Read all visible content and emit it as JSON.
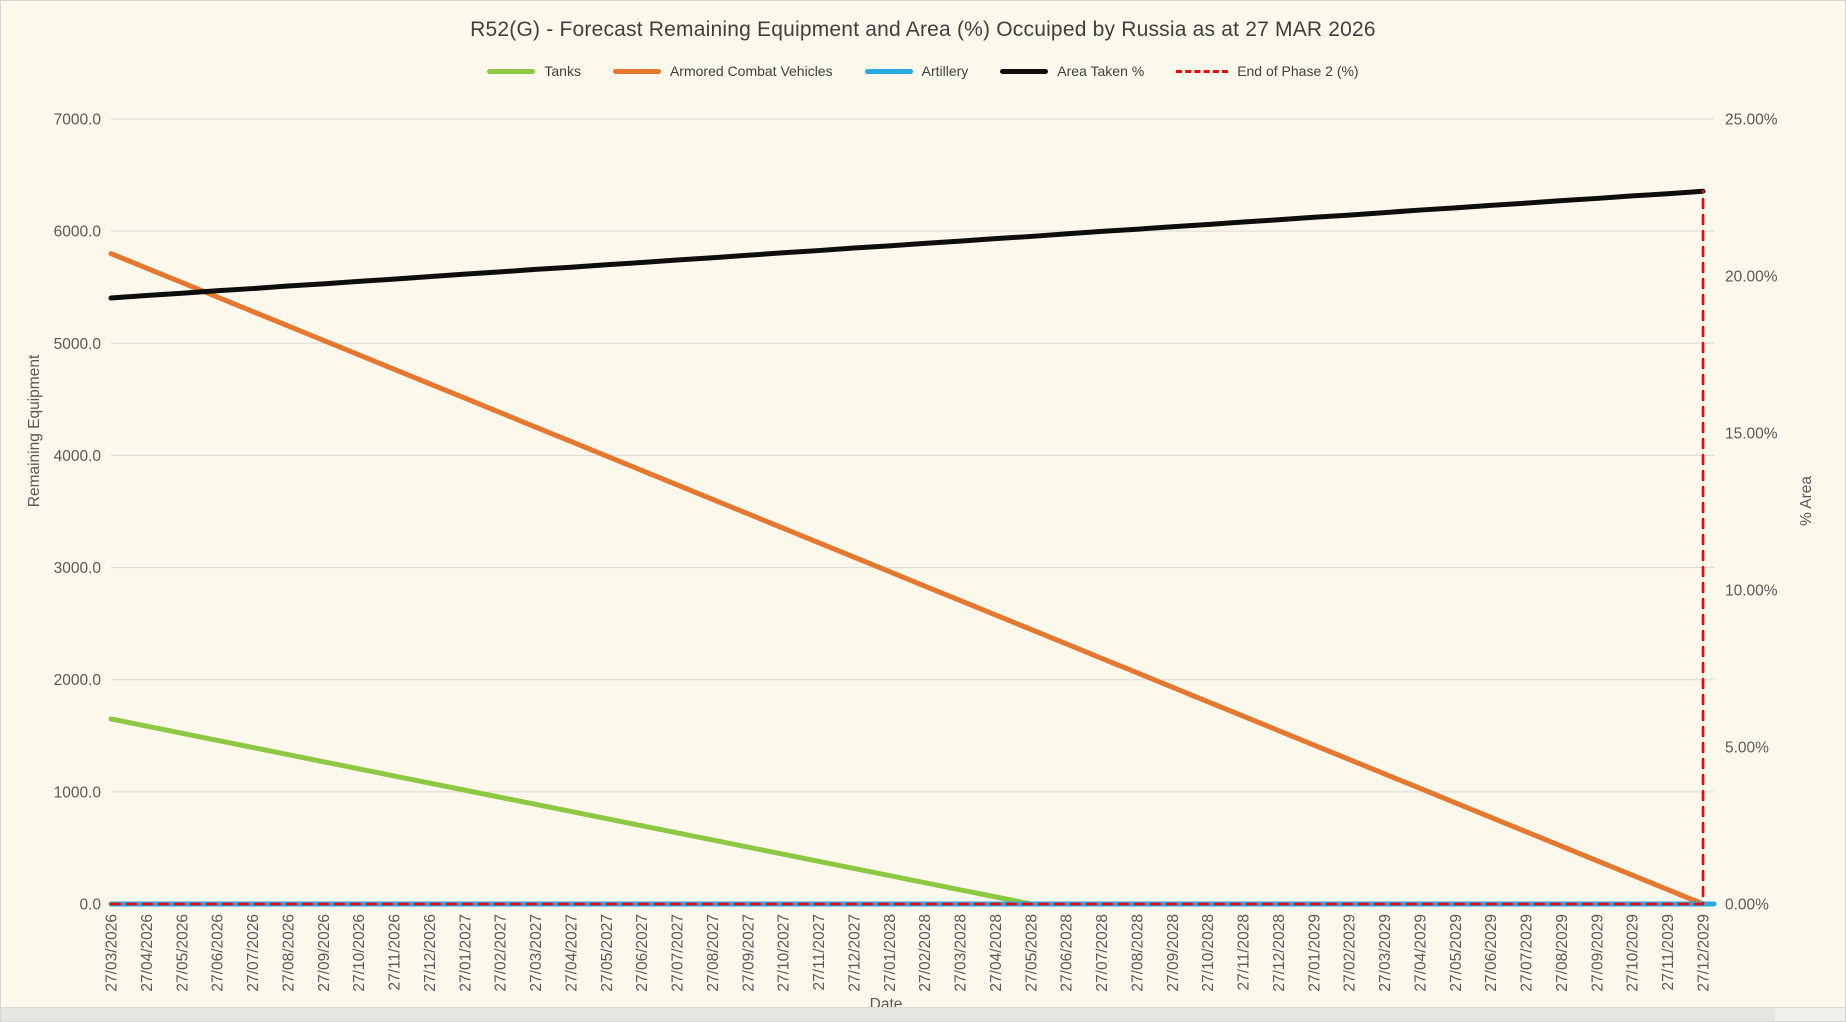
{
  "chart": {
    "title": "R52(G) - Forecast Remaining Equipment and Area (%) Occuiped by Russia as at 27 MAR 2026",
    "legend": [
      {
        "label": "Tanks",
        "color": "#8CC841",
        "style": "solid"
      },
      {
        "label": "Armored Combat Vehicles",
        "color": "#E5772F",
        "style": "solid"
      },
      {
        "label": "Artillery",
        "color": "#29A9E1",
        "style": "solid"
      },
      {
        "label": "Area Taken %",
        "color": "#0D0D0D",
        "style": "solid"
      },
      {
        "label": "End of Phase 2 (%)",
        "color": "#FF0000",
        "style": "dashed"
      }
    ],
    "left_axis": {
      "title": "Remaining Equipment",
      "max": 7000,
      "step": 1000,
      "labels": [
        "7000.0",
        "6000.0",
        "5000.0",
        "4000.0",
        "3000.0",
        "2000.0",
        "1000.0",
        "0.0"
      ]
    },
    "right_axis": {
      "title": "% Area",
      "max": 25,
      "step": 5,
      "labels": [
        "25.00%",
        "20.00%",
        "15.00%",
        "10.00%",
        "5.00%",
        "0.00%"
      ]
    },
    "x_axis": {
      "title": "Date"
    },
    "colors": {
      "background": "#FDF8EC",
      "gridline": "#D9D9D9",
      "tick_text": "#595959",
      "title_text": "#3F3F3F"
    }
  },
  "chart_data": {
    "type": "line",
    "title": "R52(G) - Forecast Remaining Equipment and Area (%) Occuiped by Russia as at 27 MAR 2026",
    "xlabel": "Date",
    "ylabel_left": "Remaining Equipment",
    "ylabel_right": "% Area",
    "ylim_left": [
      0,
      7000
    ],
    "ylim_right": [
      0,
      25
    ],
    "grid": "horizontal",
    "legend_position": "top",
    "x": [
      "27/03/2026",
      "27/04/2026",
      "27/05/2026",
      "27/06/2026",
      "27/07/2026",
      "27/08/2026",
      "27/09/2026",
      "27/10/2026",
      "27/11/2026",
      "27/12/2026",
      "27/01/2027",
      "27/02/2027",
      "27/03/2027",
      "27/04/2027",
      "27/05/2027",
      "27/06/2027",
      "27/07/2027",
      "27/08/2027",
      "27/09/2027",
      "27/10/2027",
      "27/11/2027",
      "27/12/2027",
      "27/01/2028",
      "27/02/2028",
      "27/03/2028",
      "27/04/2028",
      "27/05/2028",
      "27/06/2028",
      "27/07/2028",
      "27/08/2028",
      "27/09/2028",
      "27/10/2028",
      "27/11/2028",
      "27/12/2028",
      "27/01/2029",
      "27/02/2029",
      "27/03/2029",
      "27/04/2029",
      "27/05/2029",
      "27/06/2029",
      "27/07/2029",
      "27/08/2029",
      "27/09/2029",
      "27/10/2029",
      "27/11/2029",
      "27/12/2029"
    ],
    "series": [
      {
        "name": "Tanks",
        "axis": "left",
        "color": "#8CC841",
        "values": [
          1650.0,
          1586.5,
          1523.1,
          1459.6,
          1396.2,
          1332.7,
          1269.2,
          1205.8,
          1142.3,
          1078.8,
          1015.4,
          951.9,
          888.5,
          825.0,
          761.5,
          698.1,
          634.6,
          571.2,
          507.7,
          444.2,
          380.8,
          317.3,
          253.8,
          190.4,
          126.9,
          63.5,
          0.0,
          0.0,
          0.0,
          0.0,
          0.0,
          0.0,
          0.0,
          0.0,
          0.0,
          0.0,
          0.0,
          0.0,
          0.0,
          0.0,
          0.0,
          0.0,
          0.0,
          0.0,
          0.0,
          0.0
        ]
      },
      {
        "name": "Armored Combat Vehicles",
        "axis": "left",
        "color": "#E5772F",
        "values": [
          5800.0,
          5671.1,
          5542.2,
          5413.3,
          5284.4,
          5155.6,
          5026.7,
          4897.8,
          4768.9,
          4640.0,
          4511.1,
          4382.2,
          4253.3,
          4124.4,
          3995.6,
          3866.7,
          3737.8,
          3608.9,
          3480.0,
          3351.1,
          3222.2,
          3093.3,
          2964.4,
          2835.6,
          2706.7,
          2577.8,
          2448.9,
          2320.0,
          2191.1,
          2062.2,
          1933.3,
          1804.4,
          1675.6,
          1546.7,
          1417.8,
          1288.9,
          1160.0,
          1031.1,
          902.2,
          773.3,
          644.4,
          515.6,
          386.7,
          257.8,
          128.9,
          0.0
        ]
      },
      {
        "name": "Artillery",
        "axis": "left",
        "color": "#29A9E1",
        "extend_to_edge": true,
        "values": [
          0,
          0,
          0,
          0,
          0,
          0,
          0,
          0,
          0,
          0,
          0,
          0,
          0,
          0,
          0,
          0,
          0,
          0,
          0,
          0,
          0,
          0,
          0,
          0,
          0,
          0,
          0,
          0,
          0,
          0,
          0,
          0,
          0,
          0,
          0,
          0,
          0,
          0,
          0,
          0,
          0,
          0,
          0,
          0,
          0,
          0
        ]
      },
      {
        "name": "Area Taken %",
        "axis": "right",
        "color": "#0D0D0D",
        "values": [
          19.3,
          19.38,
          19.45,
          19.53,
          19.6,
          19.68,
          19.75,
          19.83,
          19.9,
          19.98,
          20.06,
          20.13,
          20.21,
          20.28,
          20.36,
          20.43,
          20.51,
          20.58,
          20.66,
          20.74,
          20.81,
          20.89,
          20.96,
          21.04,
          21.11,
          21.19,
          21.26,
          21.34,
          21.42,
          21.49,
          21.57,
          21.64,
          21.72,
          21.79,
          21.87,
          21.94,
          22.02,
          22.1,
          22.17,
          22.25,
          22.32,
          22.4,
          22.47,
          22.55,
          22.62,
          22.7
        ]
      },
      {
        "name": "End of Phase 2 (%)",
        "axis": "right",
        "color": "#FF0000",
        "dash": true,
        "vertical_end": true,
        "values": [
          0,
          0,
          0,
          0,
          0,
          0,
          0,
          0,
          0,
          0,
          0,
          0,
          0,
          0,
          0,
          0,
          0,
          0,
          0,
          0,
          0,
          0,
          0,
          0,
          0,
          0,
          0,
          0,
          0,
          0,
          0,
          0,
          0,
          0,
          0,
          0,
          0,
          0,
          0,
          0,
          0,
          0,
          0,
          0,
          0,
          22.7
        ]
      }
    ]
  }
}
